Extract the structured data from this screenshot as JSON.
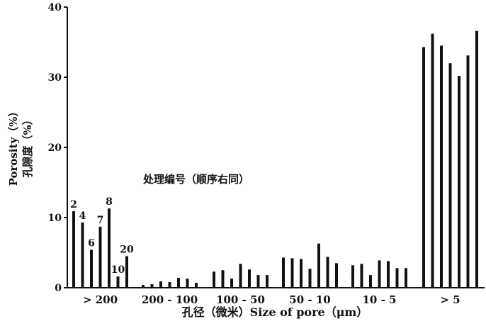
{
  "chart_data": {
    "type": "bar",
    "title": "",
    "xlabel": "孔径（微米）Size of pore（μm）",
    "ylabel_en": "Porosity（%）",
    "ylabel_cn": "孔隙度（%）",
    "ylim": [
      0,
      40
    ],
    "yticks": [
      "0",
      "10",
      "20",
      "30",
      "40"
    ],
    "legend_note": "处理编号（顺序右同）",
    "categories": [
      "> 200",
      "200 - 100",
      "100 - 50",
      "50 - 10",
      "10 - 5",
      "> 5"
    ],
    "treatments": [
      "2",
      "4",
      "6",
      "7",
      "8",
      "10",
      "20"
    ],
    "bar_labels": [
      "2",
      "4",
      "6",
      "7",
      "8",
      "10",
      "20"
    ],
    "values": [
      [
        10.9,
        9.3,
        5.4,
        8.7,
        11.3,
        1.6,
        4.5
      ],
      [
        0.4,
        0.5,
        0.9,
        0.8,
        1.4,
        1.3,
        0.7
      ],
      [
        2.3,
        2.5,
        1.3,
        3.4,
        2.6,
        1.8,
        1.8
      ],
      [
        4.3,
        4.2,
        4.1,
        2.7,
        6.3,
        4.4,
        3.5
      ],
      [
        3.2,
        3.4,
        1.8,
        3.9,
        3.8,
        2.8,
        2.8
      ],
      [
        34.3,
        36.2,
        34.5,
        32.0,
        30.2,
        33.1,
        36.6
      ]
    ],
    "grid": false,
    "legend": "none"
  },
  "colors": {
    "bar": "#111111",
    "axis": "#111111",
    "background": "#ffffff"
  }
}
